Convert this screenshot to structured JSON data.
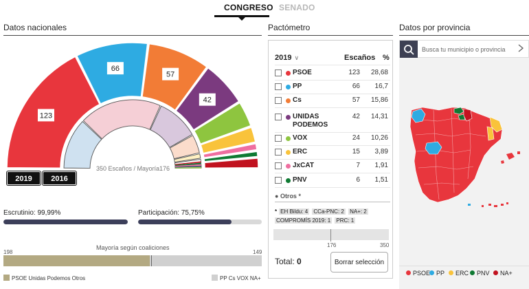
{
  "tabs": {
    "congreso": "CONGRESO",
    "senado": "SENADO"
  },
  "sections": {
    "nacional": "Datos nacionales",
    "pactometro": "Pactómetro",
    "provincia": "Datos por provincia"
  },
  "colors": {
    "psoe": "#e8363d",
    "pp": "#2eabe2",
    "cs": "#f27c36",
    "podemos": "#7b3a7f",
    "vox": "#8ec53f",
    "erc": "#f9c33b",
    "jxcat": "#ef6ea0",
    "pnv": "#0f7a33",
    "naplus": "#c1121f",
    "dark": "#3c3f5a",
    "coal": "#b3a982"
  },
  "hemicycle": {
    "outer_labels": [
      "123",
      "66",
      "57",
      "42"
    ],
    "year_outer": "2019",
    "year_inner": "2016",
    "caption": "350 Escaños / Mayoría176"
  },
  "metrics": {
    "escrutinio_label": "Escrutinio: 99,99%",
    "escrutinio_pct": 99.99,
    "participacion_label": "Participación: 75,75%",
    "participacion_pct": 75.75
  },
  "coalitions": {
    "title": "Mayoría según coaliciones",
    "left_value": "198",
    "right_value": "149",
    "left_seats": 198,
    "total_seats": 350,
    "left_legend": "PSOE Unidas Podemos Otros",
    "right_legend": "PP Cs VOX NA+"
  },
  "pact": {
    "year": "2019",
    "col_escanos": "Escaños",
    "col_pct": "%",
    "parties": [
      {
        "name": "PSOE",
        "seats": "123",
        "pct": "28,68",
        "color": "#e8363d"
      },
      {
        "name": "PP",
        "seats": "66",
        "pct": "16,7",
        "color": "#2eabe2"
      },
      {
        "name": "Cs",
        "seats": "57",
        "pct": "15,86",
        "color": "#f27c36"
      },
      {
        "name": "UNIDAS PODEMOS",
        "seats": "42",
        "pct": "14,31",
        "color": "#7b3a7f"
      },
      {
        "name": "VOX",
        "seats": "24",
        "pct": "10,26",
        "color": "#8ec53f"
      },
      {
        "name": "ERC",
        "seats": "15",
        "pct": "3,89",
        "color": "#f9c33b"
      },
      {
        "name": "JxCAT",
        "seats": "7",
        "pct": "1,91",
        "color": "#ef6ea0"
      },
      {
        "name": "PNV",
        "seats": "6",
        "pct": "1,51",
        "color": "#0f7a33"
      }
    ],
    "otros_label": "Otros *",
    "otros": [
      "EH Bildu: 4",
      "CCa-PNC: 2",
      "NA+: 2",
      "COMPROMÍS 2019: 1",
      "PRC: 1"
    ],
    "otros_prefix": "*",
    "scale_mid": "176",
    "scale_max": "350",
    "total_label": "Total:",
    "total_value": "0",
    "clear_button": "Borrar selección"
  },
  "province": {
    "search_placeholder": "Busca tu municipio o provincia",
    "legend": [
      {
        "name": "PSOE",
        "color": "#e8363d"
      },
      {
        "name": "PP",
        "color": "#2eabe2"
      },
      {
        "name": "ERC",
        "color": "#f9c33b"
      },
      {
        "name": "PNV",
        "color": "#0f7a33"
      },
      {
        "name": "NA+",
        "color": "#c1121f"
      }
    ]
  }
}
